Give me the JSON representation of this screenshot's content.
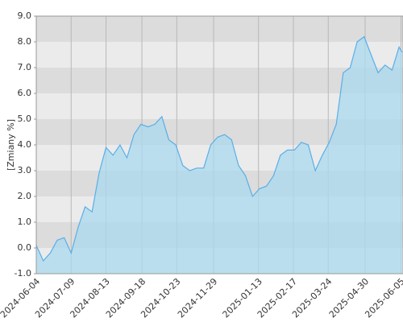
{
  "chart_data": {
    "type": "area",
    "y_label": "[Zmiany %]",
    "x": [
      "2024-06-04",
      "2024-06-11",
      "2024-06-18",
      "2024-06-25",
      "2024-07-02",
      "2024-07-09",
      "2024-07-16",
      "2024-07-23",
      "2024-07-30",
      "2024-08-06",
      "2024-08-13",
      "2024-08-20",
      "2024-08-27",
      "2024-09-03",
      "2024-09-10",
      "2024-09-17",
      "2024-09-24",
      "2024-10-01",
      "2024-10-08",
      "2024-10-15",
      "2024-10-22",
      "2024-10-29",
      "2024-11-05",
      "2024-11-12",
      "2024-11-19",
      "2024-11-26",
      "2024-12-03",
      "2024-12-10",
      "2024-12-17",
      "2024-12-24",
      "2024-12-31",
      "2025-01-07",
      "2025-01-14",
      "2025-01-21",
      "2025-01-28",
      "2025-02-04",
      "2025-02-11",
      "2025-02-18",
      "2025-02-25",
      "2025-03-04",
      "2025-03-11",
      "2025-03-18",
      "2025-03-25",
      "2025-04-01",
      "2025-04-08",
      "2025-04-15",
      "2025-04-22",
      "2025-04-29",
      "2025-05-06",
      "2025-05-13",
      "2025-05-20",
      "2025-05-27",
      "2025-06-03",
      "2025-06-06"
    ],
    "series": [
      {
        "color": "#5aaee8",
        "fill": "#a9d9ee",
        "values": [
          0.1,
          -0.5,
          -0.2,
          0.3,
          0.4,
          -0.2,
          0.8,
          1.6,
          1.4,
          2.9,
          3.9,
          3.6,
          4.0,
          3.5,
          4.4,
          4.8,
          4.7,
          4.8,
          5.1,
          4.2,
          4.0,
          3.2,
          3.0,
          3.1,
          3.1,
          4.0,
          4.3,
          4.4,
          4.2,
          3.2,
          2.8,
          2.0,
          2.3,
          2.4,
          2.8,
          3.6,
          3.8,
          3.8,
          4.1,
          4.0,
          3.0,
          3.6,
          4.1,
          4.8,
          6.8,
          7.0,
          8.0,
          8.2,
          7.5,
          6.8,
          7.1,
          6.9,
          7.8,
          7.6
        ]
      }
    ],
    "xlim": [
      "2024-06-04",
      "2025-06-07"
    ],
    "xticks": [
      "2024-06-04",
      "2024-07-09",
      "2024-08-13",
      "2024-09-18",
      "2024-10-23",
      "2024-11-29",
      "2025-01-13",
      "2025-02-17",
      "2025-03-24",
      "2025-04-30",
      "2025-06-05"
    ],
    "ylim": [
      -1,
      9
    ],
    "yticks": [
      {
        "value": -1,
        "label": "-1.0"
      },
      {
        "value": 0,
        "label": "0.0"
      },
      {
        "value": 1,
        "label": "1.0"
      },
      {
        "value": 2,
        "label": "2.0"
      },
      {
        "value": 3,
        "label": "3.0"
      },
      {
        "value": 4,
        "label": "4.0"
      },
      {
        "value": 5,
        "label": "5.0"
      },
      {
        "value": 6,
        "label": "6.0"
      },
      {
        "value": 7,
        "label": "7.0"
      },
      {
        "value": 8,
        "label": "8.0"
      },
      {
        "value": 9,
        "label": "9.0"
      }
    ],
    "grid": true
  }
}
